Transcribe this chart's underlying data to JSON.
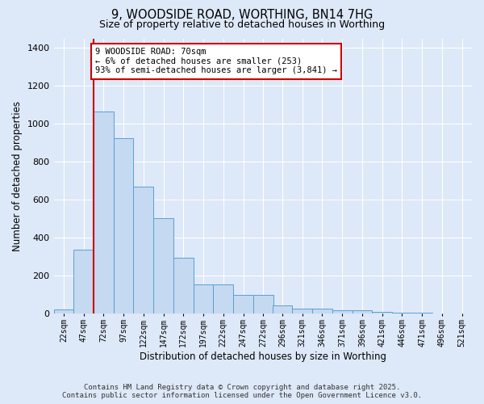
{
  "title_line1": "9, WOODSIDE ROAD, WORTHING, BN14 7HG",
  "title_line2": "Size of property relative to detached houses in Worthing",
  "xlabel": "Distribution of detached houses by size in Worthing",
  "ylabel": "Number of detached properties",
  "categories": [
    "22sqm",
    "47sqm",
    "72sqm",
    "97sqm",
    "122sqm",
    "147sqm",
    "172sqm",
    "197sqm",
    "222sqm",
    "247sqm",
    "272sqm",
    "296sqm",
    "321sqm",
    "346sqm",
    "371sqm",
    "396sqm",
    "421sqm",
    "446sqm",
    "471sqm",
    "496sqm",
    "521sqm"
  ],
  "bin_lefts": [
    22,
    47,
    72,
    97,
    122,
    147,
    172,
    197,
    222,
    247,
    272,
    296,
    321,
    346,
    371,
    396,
    421,
    446,
    471,
    496,
    521
  ],
  "bin_width": 25,
  "heights": [
    20,
    335,
    1065,
    925,
    668,
    505,
    293,
    155,
    155,
    100,
    100,
    42,
    25,
    25,
    18,
    18,
    10,
    5,
    3,
    0,
    0
  ],
  "bar_color": "#c5d9f0",
  "bar_edge_color": "#5a9fd4",
  "vline_x": 72,
  "vline_color": "#cc0000",
  "annotation_text": "9 WOODSIDE ROAD: 70sqm\n← 6% of detached houses are smaller (253)\n93% of semi-detached houses are larger (3,841) →",
  "ylim": [
    0,
    1450
  ],
  "yticks": [
    0,
    200,
    400,
    600,
    800,
    1000,
    1200,
    1400
  ],
  "background_color": "#dde8f8",
  "grid_color": "#ffffff",
  "footer_text": "Contains HM Land Registry data © Crown copyright and database right 2025.\nContains public sector information licensed under the Open Government Licence v3.0."
}
